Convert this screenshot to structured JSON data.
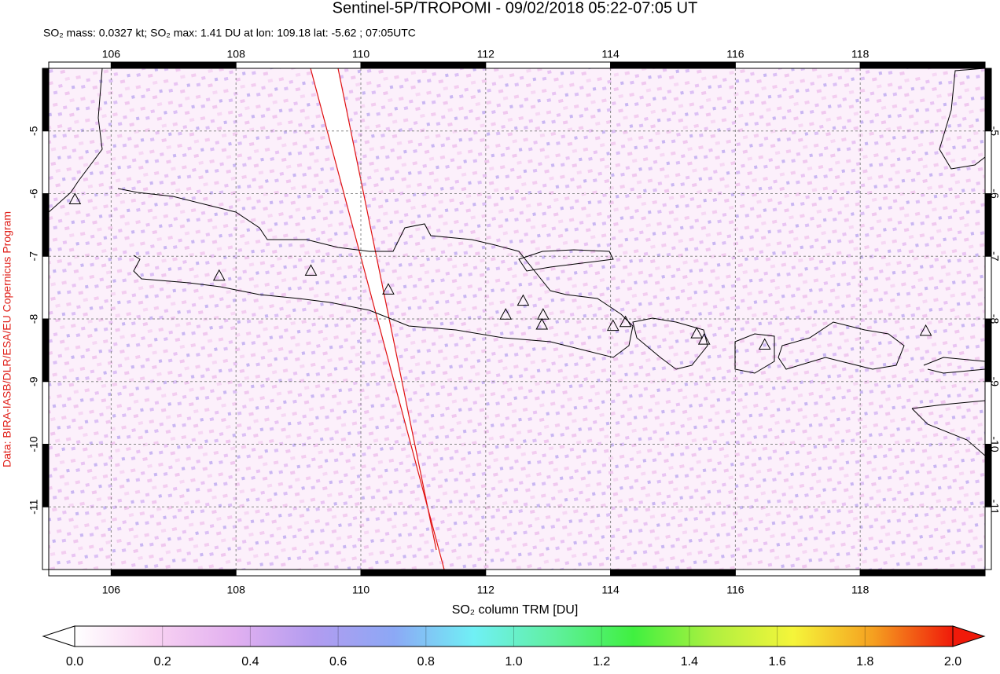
{
  "chart_data": {
    "type": "map",
    "title": "Sentinel-5P/TROPOMI - 09/02/2018 05:22-07:05 UT",
    "subtitle": "SO₂ mass: 0.0327 kt; SO₂ max: 1.41 DU at lon: 109.18 lat: -5.62 ; 07:05UTC",
    "credit": "Data: BIRA-IASB/DLR/ESA/EU Copernicus Program",
    "xlim": [
      105,
      120
    ],
    "ylim": [
      -12,
      -4
    ],
    "xticks": [
      106,
      108,
      110,
      112,
      114,
      116,
      118
    ],
    "yticks": [
      -5,
      -6,
      -7,
      -8,
      -9,
      -10,
      -11
    ],
    "grid": true,
    "volcanoes": {
      "lon": [
        105.42,
        107.73,
        109.2,
        110.44,
        112.32,
        112.6,
        112.92,
        112.9,
        114.04,
        114.24,
        115.38,
        115.5,
        116.47,
        119.05
      ],
      "lat": [
        -6.1,
        -7.32,
        -7.24,
        -7.54,
        -7.94,
        -7.72,
        -7.94,
        -8.1,
        -8.12,
        -8.06,
        -8.24,
        -8.34,
        -8.42,
        -8.2
      ]
    },
    "colorbar": {
      "label": "SO₂ column TRM [DU]",
      "range": [
        0,
        2
      ],
      "ticks": [
        {
          "value": 0,
          "label": "0.0"
        },
        {
          "value": 0.2,
          "label": "0.2"
        },
        {
          "value": 0.4,
          "label": "0.4"
        },
        {
          "value": 0.6,
          "label": "0.6"
        },
        {
          "value": 0.8,
          "label": "0.8"
        },
        {
          "value": 1,
          "label": "1.0"
        },
        {
          "value": 1.2,
          "label": "1.2"
        },
        {
          "value": 1.4,
          "label": "1.4"
        },
        {
          "value": 1.6,
          "label": "1.6"
        },
        {
          "value": 1.8,
          "label": "1.8"
        },
        {
          "value": 2,
          "label": "2.0"
        }
      ],
      "colors": [
        "#ffffff",
        "#f8d2f2",
        "#e2b0f0",
        "#b29cf0",
        "#8ca8f5",
        "#70f0f5",
        "#60f0a0",
        "#40f040",
        "#b0f040",
        "#f5f53a",
        "#f5a020",
        "#f01a0a"
      ]
    }
  }
}
